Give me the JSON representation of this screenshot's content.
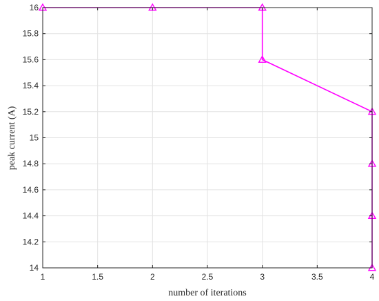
{
  "chart_data": {
    "type": "line",
    "xlabel": "number of iterations",
    "ylabel": "peak current (A)",
    "xlim": [
      1,
      4
    ],
    "ylim": [
      14,
      16
    ],
    "grid": true,
    "x_ticks": [
      "1",
      "1.5",
      "2",
      "2.5",
      "3",
      "3.5",
      "4"
    ],
    "y_ticks": [
      "14",
      "14.2",
      "14.4",
      "14.6",
      "14.8",
      "15",
      "15.2",
      "15.4",
      "15.6",
      "15.8",
      "16"
    ],
    "series": [
      {
        "color": "#ff00ff",
        "marker": "triangle-open",
        "x": [
          1,
          2,
          3,
          3,
          4,
          4,
          4,
          4
        ],
        "y": [
          16,
          16,
          16,
          15.6,
          15.2,
          14.8,
          14.4,
          14.0
        ]
      }
    ]
  }
}
